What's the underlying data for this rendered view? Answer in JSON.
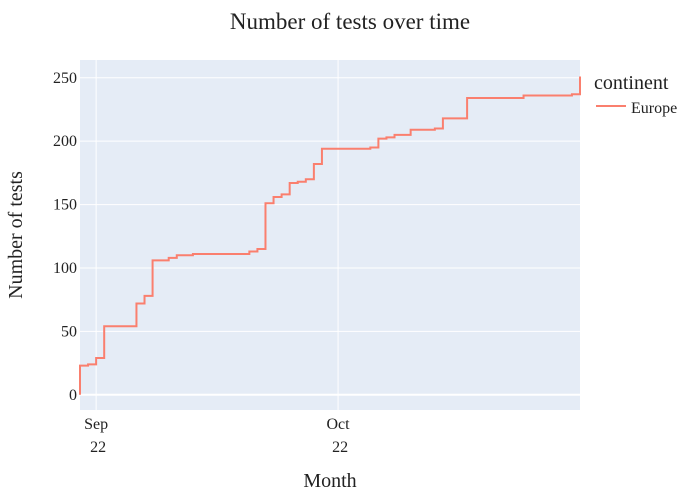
{
  "chart_data": {
    "type": "line",
    "title": "Number of tests over time",
    "xlabel": "Month",
    "ylabel": "Number of tests",
    "legend_title": "continent",
    "legend_position": "top-right, outside plot",
    "grid": true,
    "x_range": [
      "2022-08-30",
      "2022-10-31"
    ],
    "ylim": [
      -12,
      264
    ],
    "y_ticks": [
      0,
      50,
      100,
      150,
      200,
      250
    ],
    "x_ticks": [
      {
        "date": "2022-09-01",
        "line1": "Sep",
        "line2": "22"
      },
      {
        "date": "2022-10-01",
        "line1": "Oct",
        "line2": "22"
      }
    ],
    "colors": {
      "plot_background": "#e5ecf6",
      "grid": "#ffffff",
      "series": "#fa7f6e"
    },
    "series": [
      {
        "name": "Europe",
        "line_shape": "step",
        "points": [
          [
            "2022-08-30",
            0
          ],
          [
            "2022-08-30",
            23
          ],
          [
            "2022-08-31",
            24
          ],
          [
            "2022-09-01",
            29
          ],
          [
            "2022-09-02",
            30
          ],
          [
            "2022-09-02",
            53
          ],
          [
            "2022-09-02",
            54
          ],
          [
            "2022-09-06",
            55
          ],
          [
            "2022-09-06",
            72
          ],
          [
            "2022-09-07",
            77
          ],
          [
            "2022-09-07",
            78
          ],
          [
            "2022-09-08",
            106
          ],
          [
            "2022-09-10",
            108
          ],
          [
            "2022-09-11",
            110
          ],
          [
            "2022-09-13",
            111
          ],
          [
            "2022-09-20",
            113
          ],
          [
            "2022-09-21",
            115
          ],
          [
            "2022-09-22",
            121
          ],
          [
            "2022-09-22",
            151
          ],
          [
            "2022-09-23",
            156
          ],
          [
            "2022-09-24",
            158
          ],
          [
            "2022-09-25",
            167
          ],
          [
            "2022-09-26",
            168
          ],
          [
            "2022-09-27",
            170
          ],
          [
            "2022-09-28",
            182
          ],
          [
            "2022-09-29",
            184
          ],
          [
            "2022-09-29",
            194
          ],
          [
            "2022-10-05",
            195
          ],
          [
            "2022-10-06",
            202
          ],
          [
            "2022-10-07",
            203
          ],
          [
            "2022-10-08",
            205
          ],
          [
            "2022-10-10",
            209
          ],
          [
            "2022-10-13",
            210
          ],
          [
            "2022-10-14",
            218
          ],
          [
            "2022-10-17",
            219
          ],
          [
            "2022-10-17",
            234
          ],
          [
            "2022-10-24",
            236
          ],
          [
            "2022-10-30",
            237
          ],
          [
            "2022-10-31",
            241
          ],
          [
            "2022-10-31",
            251
          ]
        ]
      }
    ]
  }
}
